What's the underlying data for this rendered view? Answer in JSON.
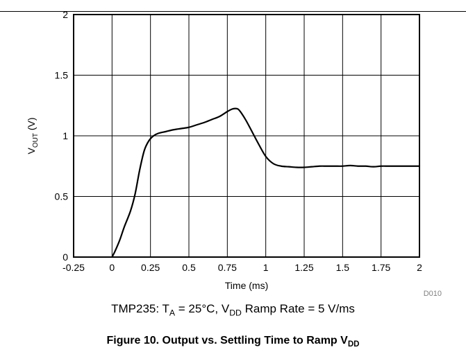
{
  "chart_data": {
    "type": "line",
    "title": "",
    "xlabel": "Time (ms)",
    "ylabel": {
      "main": "V",
      "sub": "OUT",
      "rest": " (V)"
    },
    "xlim": [
      -0.25,
      2
    ],
    "ylim": [
      0,
      2
    ],
    "xticks": [
      -0.25,
      0,
      0.25,
      0.5,
      0.75,
      1,
      1.25,
      1.5,
      1.75,
      2
    ],
    "xtick_labels": [
      "-0.25",
      "0",
      "0.25",
      "0.5",
      "0.75",
      "1",
      "1.25",
      "1.5",
      "1.75",
      "2"
    ],
    "yticks": [
      0,
      0.5,
      1,
      1.5,
      2
    ],
    "ytick_labels": [
      "0",
      "0.5",
      "1",
      "1.5",
      "2"
    ],
    "grid": true,
    "series": [
      {
        "color": "#000000",
        "x": [
          0.0,
          0.02,
          0.05,
          0.08,
          0.12,
          0.15,
          0.18,
          0.21,
          0.24,
          0.27,
          0.3,
          0.35,
          0.4,
          0.45,
          0.5,
          0.55,
          0.6,
          0.65,
          0.7,
          0.75,
          0.78,
          0.8,
          0.82,
          0.84,
          0.87,
          0.9,
          0.95,
          1.0,
          1.05,
          1.1,
          1.15,
          1.2,
          1.25,
          1.3,
          1.35,
          1.4,
          1.45,
          1.5,
          1.55,
          1.6,
          1.65,
          1.7,
          1.75,
          1.8,
          1.85,
          1.9,
          1.95,
          2.0
        ],
        "y": [
          0.0,
          0.05,
          0.14,
          0.25,
          0.38,
          0.52,
          0.72,
          0.88,
          0.96,
          1.0,
          1.02,
          1.035,
          1.05,
          1.06,
          1.07,
          1.09,
          1.11,
          1.135,
          1.16,
          1.2,
          1.22,
          1.225,
          1.22,
          1.19,
          1.13,
          1.06,
          0.94,
          0.83,
          0.77,
          0.75,
          0.745,
          0.74,
          0.74,
          0.745,
          0.75,
          0.75,
          0.75,
          0.75,
          0.755,
          0.75,
          0.75,
          0.745,
          0.75,
          0.75,
          0.75,
          0.75,
          0.75,
          0.75
        ]
      }
    ],
    "annotation_code": "D010"
  },
  "conditions": {
    "prefix": "TMP235: T",
    "ta_sub": "A",
    "middle": " = 25°C, V",
    "vdd_sub": "DD",
    "suffix": " Ramp Rate = 5 V/ms"
  },
  "caption": {
    "prefix": "Figure 10. Output vs. Settling Time to Ramp V",
    "sub": "DD"
  }
}
